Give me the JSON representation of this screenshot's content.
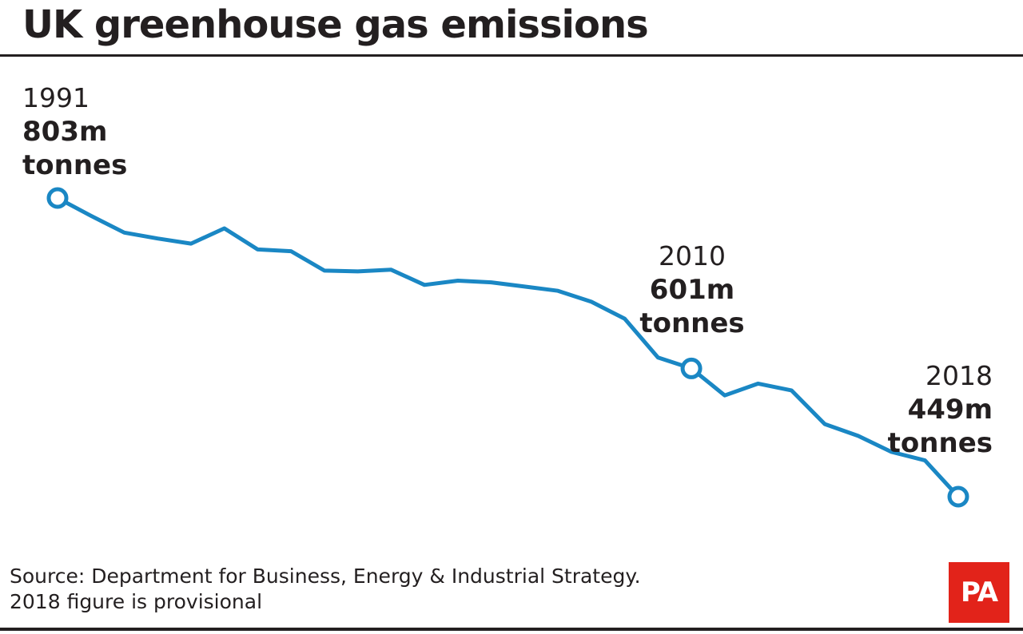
{
  "title": "UK greenhouse gas emissions",
  "source": {
    "line1": "Source: Department for Business, Energy & Industrial Strategy.",
    "line2": "2018 figure is provisional"
  },
  "logo": "PA",
  "colors": {
    "line": "#1a87c4",
    "text": "#231f20",
    "logo_bg": "#e2231a"
  },
  "annotations": {
    "first": {
      "year": "1991",
      "value": "803m",
      "unit": "tonnes"
    },
    "mid": {
      "year": "2010",
      "value": "601m",
      "unit": "tonnes"
    },
    "last": {
      "year": "2018",
      "value": "449m",
      "unit": "tonnes"
    }
  },
  "chart_data": {
    "type": "line",
    "title": "UK greenhouse gas emissions",
    "x": [
      1991,
      1992,
      1993,
      1994,
      1995,
      1996,
      1997,
      1998,
      1999,
      2000,
      2001,
      2002,
      2003,
      2004,
      2005,
      2006,
      2007,
      2008,
      2009,
      2010,
      2011,
      2012,
      2013,
      2014,
      2015,
      2016,
      2017,
      2018
    ],
    "series": [
      {
        "values": [
          803,
          782,
          762,
          755,
          749,
          767,
          742,
          740,
          717,
          716,
          718,
          700,
          705,
          703,
          698,
          693,
          680,
          660,
          614,
          601,
          569,
          583,
          575,
          535,
          521,
          502,
          492,
          449
        ]
      }
    ],
    "units": "m tonnes",
    "grid": false,
    "legend": "none",
    "highlighted_points": [
      1991,
      2010,
      2018
    ]
  }
}
